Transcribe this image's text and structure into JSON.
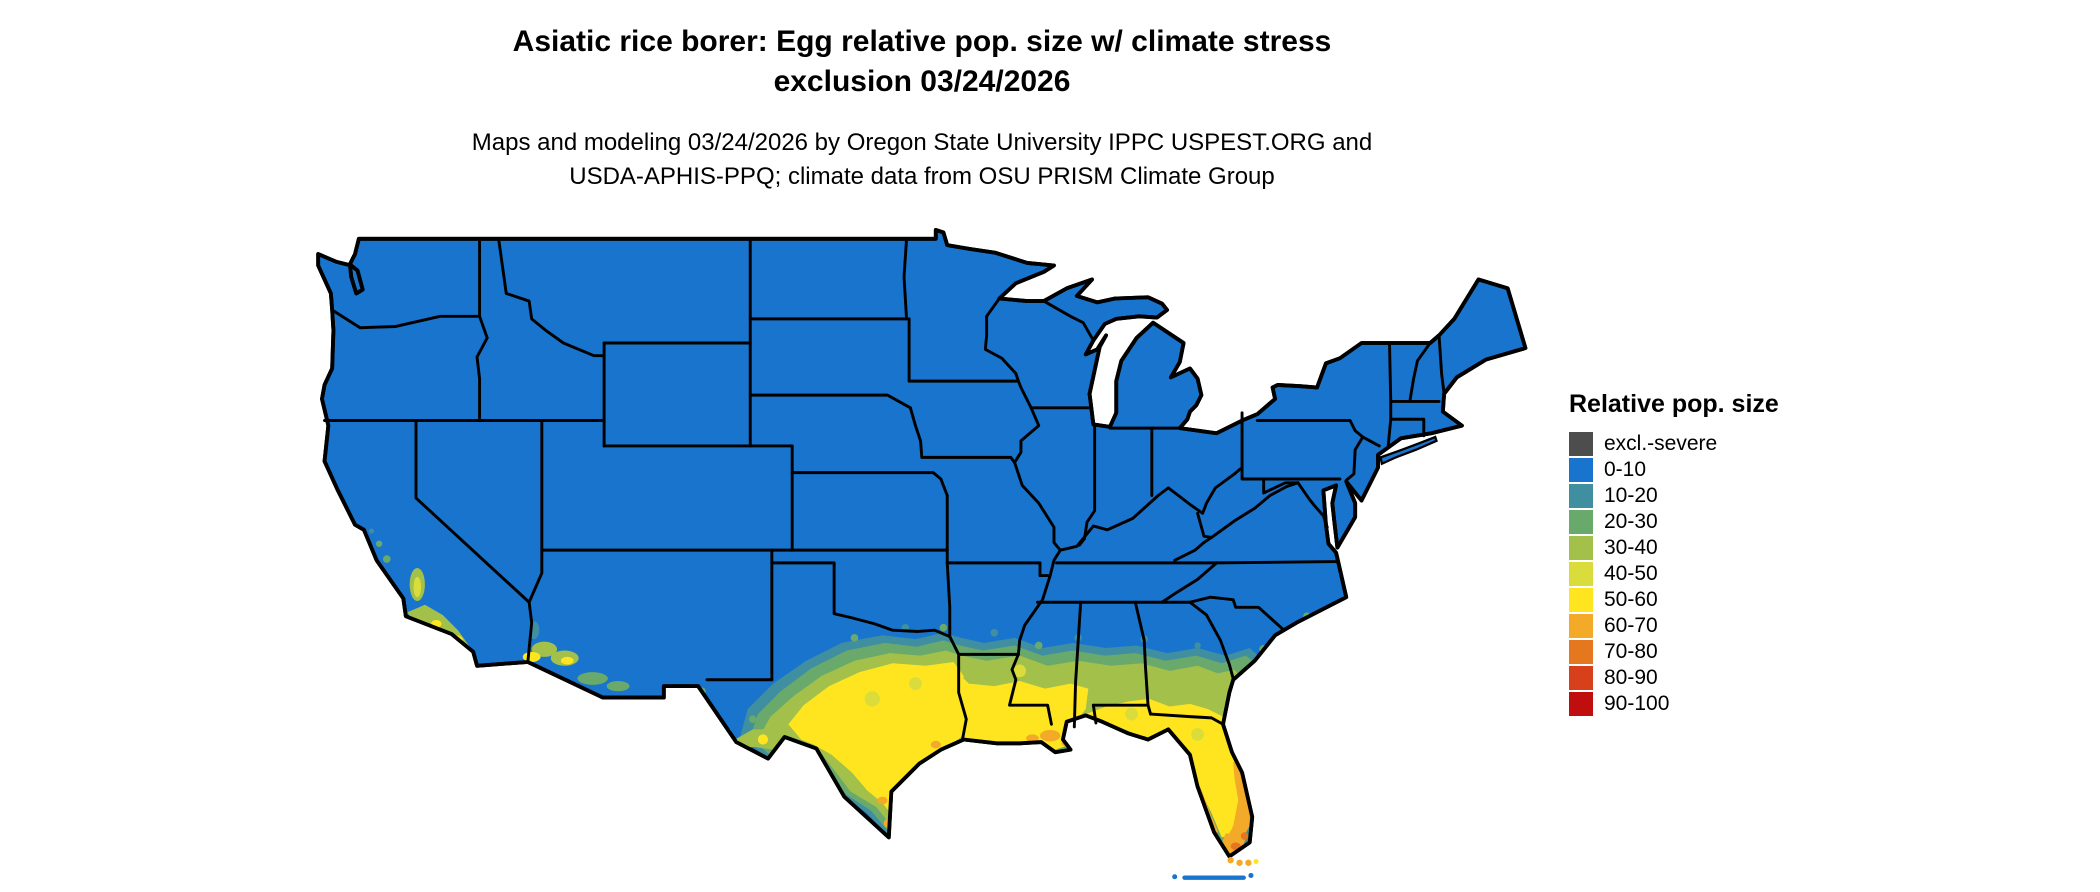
{
  "title": {
    "line1": "Asiatic rice borer: Egg relative pop. size w/ climate stress",
    "line2": "exclusion 03/24/2026"
  },
  "subtitle": {
    "line1": "Maps and modeling 03/24/2026 by Oregon State University IPPC USPEST.ORG and",
    "line2": "USDA-APHIS-PPQ; climate data from OSU PRISM Climate Group"
  },
  "map": {
    "region": "Contiguous United States",
    "base_color": "#1874cd",
    "state_border_color": "#000000",
    "water_color": "#ffffff"
  },
  "legend": {
    "title": "Relative pop. size",
    "items": [
      {
        "label": "excl.-severe",
        "color": "#4d4d4d"
      },
      {
        "label": "0-10",
        "color": "#1874cd"
      },
      {
        "label": "10-20",
        "color": "#3f8fa0"
      },
      {
        "label": "20-30",
        "color": "#6aa96c"
      },
      {
        "label": "30-40",
        "color": "#a2c04a"
      },
      {
        "label": "40-50",
        "color": "#d9dc3a"
      },
      {
        "label": "50-60",
        "color": "#ffe51f"
      },
      {
        "label": "60-70",
        "color": "#f2aa28"
      },
      {
        "label": "70-80",
        "color": "#e5781e"
      },
      {
        "label": "80-90",
        "color": "#d8401c"
      },
      {
        "label": "90-100",
        "color": "#c00d0d"
      }
    ]
  }
}
